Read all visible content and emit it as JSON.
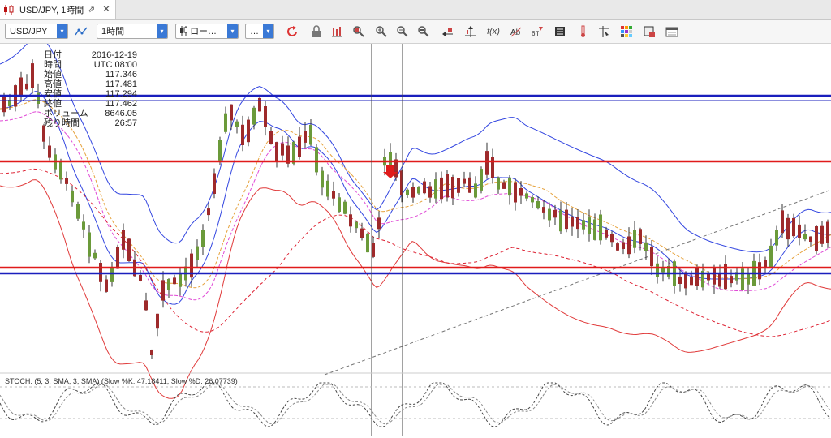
{
  "tab": {
    "title": "USD/JPY, 1時間",
    "popout_glyph": "⇗",
    "close_glyph": "✕"
  },
  "toolbar": {
    "symbol": "USD/JPY",
    "period": "1時間",
    "chart_type": "ロー…",
    "more": "…",
    "icons": [
      "refresh-icon",
      "lock-icon",
      "zoom-fit-icon",
      "zoom-in-icon",
      "zoom-out-icon",
      "zoom-reset-icon",
      "scroll-icon",
      "crosshair-icon",
      "fx-icon",
      "indicator-icon",
      "analysis-icon",
      "list-icon",
      "thermometer-icon",
      "pin-icon",
      "palette-icon",
      "screenshot-icon",
      "calendar-icon"
    ]
  },
  "info_panel": [
    {
      "label": "日付",
      "value": "2016-12-19"
    },
    {
      "label": "時間",
      "value": "UTC 08:00"
    },
    {
      "label": "始値",
      "value": "117.346"
    },
    {
      "label": "高値",
      "value": "117.481"
    },
    {
      "label": "安値",
      "value": "117.294"
    },
    {
      "label": "終値",
      "value": "117.462"
    },
    {
      "label": "ボリューム",
      "value": "8646.05"
    },
    {
      "label": "残り時間",
      "value": "26:57"
    }
  ],
  "stoch": {
    "label": "STOCH: (5, 3, SMA, 3, SMA) (Slow %K: 47.18411, Slow %D: 26.07739)"
  },
  "colors": {
    "up": "#6b9a3a",
    "down": "#9e2a2b",
    "red_line": "#e01b1b",
    "blue_line": "#1a1fbd",
    "bb": "#3346e0",
    "bb_red": "#e03a3a"
  }
}
